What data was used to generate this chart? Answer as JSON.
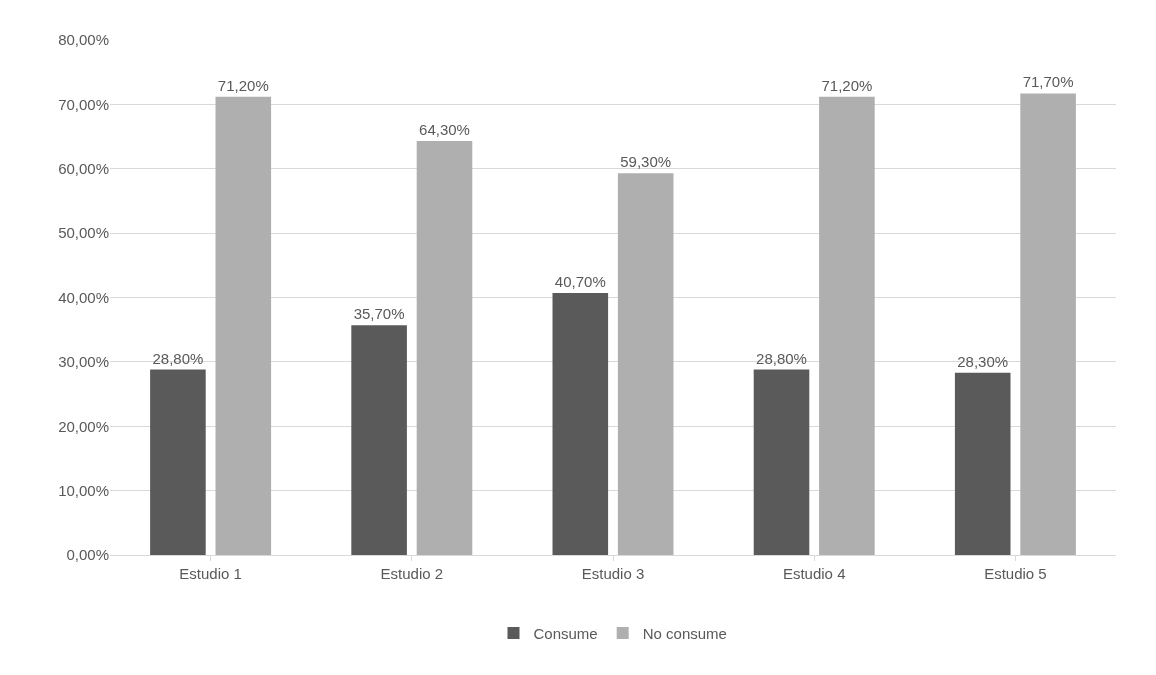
{
  "chart_data": {
    "type": "bar",
    "categories": [
      "Estudio 1",
      "Estudio 2",
      "Estudio 3",
      "Estudio 4",
      "Estudio 5"
    ],
    "series": [
      {
        "name": "Consume",
        "color": "#5a5a5a",
        "values": [
          28.8,
          35.7,
          40.7,
          28.8,
          28.3
        ],
        "value_labels": [
          "28,80%",
          "35,70%",
          "40,70%",
          "28,80%",
          "28,30%"
        ]
      },
      {
        "name": "No consume",
        "color": "#afafaf",
        "values": [
          71.2,
          64.3,
          59.3,
          71.2,
          71.7
        ],
        "value_labels": [
          "71,20%",
          "64,30%",
          "59,30%",
          "71,20%",
          "71,70%"
        ]
      }
    ],
    "ylim": [
      0,
      80
    ],
    "yticks": [
      {
        "value": 0,
        "label": "0,00%"
      },
      {
        "value": 10,
        "label": "10,00%"
      },
      {
        "value": 20,
        "label": "20,00%"
      },
      {
        "value": 30,
        "label": "30,00%"
      },
      {
        "value": 40,
        "label": "40,00%"
      },
      {
        "value": 50,
        "label": "50,00%"
      },
      {
        "value": 60,
        "label": "60,00%"
      },
      {
        "value": 70,
        "label": "70,00%"
      },
      {
        "value": 80,
        "label": "80,00%"
      }
    ],
    "grid": "y",
    "legend": "bottom"
  }
}
